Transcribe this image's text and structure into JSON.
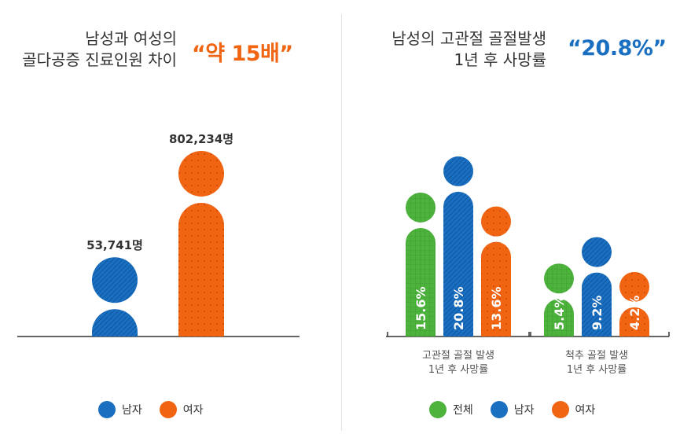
{
  "colors": {
    "green": "#4db33d",
    "blue": "#1a6fc1",
    "orange": "#f06412",
    "axis": "#333333",
    "highlight_left": "#f06412",
    "highlight_right": "#1a6fc1"
  },
  "left": {
    "title_line1": "남성과 여성의",
    "title_line2": "골다공증 진료인원 차이",
    "highlight": "“약 15배”",
    "legend": [
      {
        "label": "남자",
        "color": "blue"
      },
      {
        "label": "여자",
        "color": "orange"
      }
    ]
  },
  "right": {
    "title_line1": "남성의 고관절 골절발생",
    "title_line2": "1년 후 사망률",
    "highlight": "“20.8%”",
    "legend": [
      {
        "label": "전체",
        "color": "green"
      },
      {
        "label": "남자",
        "color": "blue"
      },
      {
        "label": "여자",
        "color": "orange"
      }
    ]
  },
  "chart_data": [
    {
      "type": "bar",
      "title": "남성과 여성의 골다공증 진료인원 차이",
      "categories": [
        "남자",
        "여자"
      ],
      "values": [
        53741,
        802234
      ],
      "value_labels": [
        "53,741명",
        "802,234명"
      ],
      "colors": [
        "blue",
        "orange"
      ]
    },
    {
      "type": "bar",
      "title": "남성의 고관절 골절발생 1년 후 사망률",
      "groups": [
        {
          "label_line1": "고관절 골절 발생",
          "label_line2": "1년 후 사망률"
        },
        {
          "label_line1": "척추 골절 발생",
          "label_line2": "1년 후 사망률"
        }
      ],
      "series": [
        {
          "name": "전체",
          "color": "green",
          "values": [
            15.6,
            5.4
          ],
          "labels": [
            "15.6%",
            "5.4%"
          ]
        },
        {
          "name": "남자",
          "color": "blue",
          "values": [
            20.8,
            9.2
          ],
          "labels": [
            "20.8%",
            "9.2%"
          ]
        },
        {
          "name": "여자",
          "color": "orange",
          "values": [
            13.6,
            4.2
          ],
          "labels": [
            "13.6%",
            "4.2%"
          ]
        }
      ]
    }
  ]
}
